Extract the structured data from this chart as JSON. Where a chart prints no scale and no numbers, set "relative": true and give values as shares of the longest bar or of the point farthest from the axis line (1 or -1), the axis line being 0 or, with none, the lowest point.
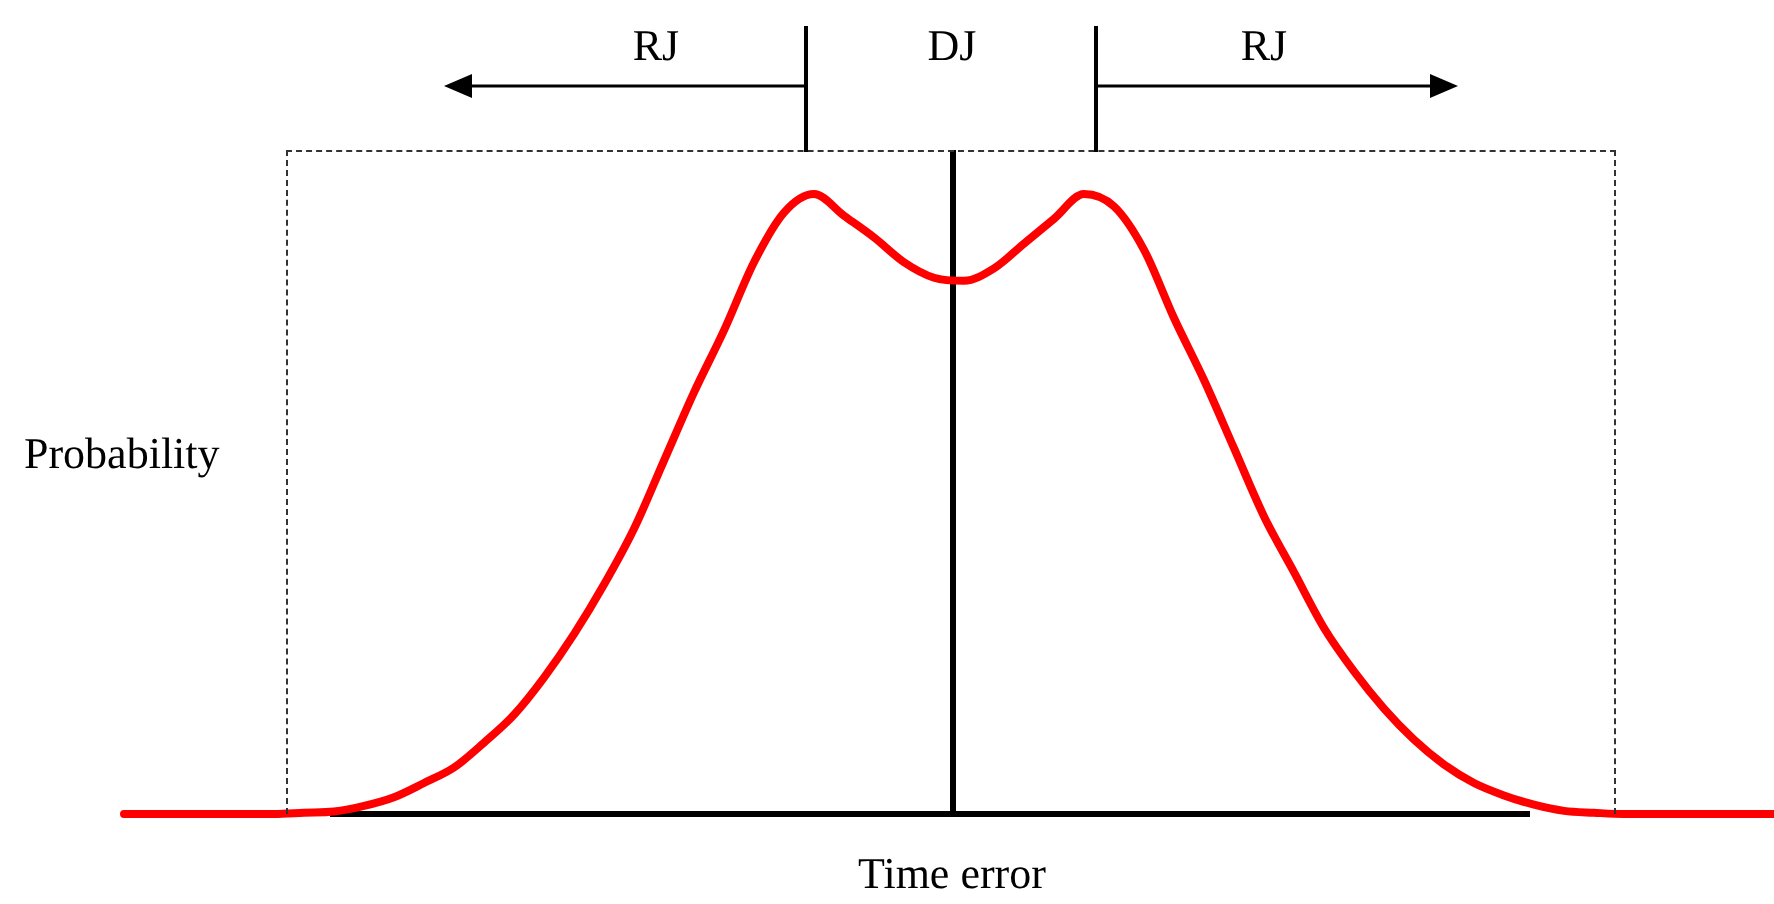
{
  "chart_data": {
    "type": "line",
    "relative": true,
    "xlabel": "Time error",
    "ylabel": "Probability",
    "annotations": [
      "RJ",
      "DJ",
      "RJ"
    ],
    "marker": "none",
    "line_style": "solid",
    "categories": [
      null,
      null,
      null,
      null,
      null,
      null,
      null,
      null,
      null,
      null,
      null,
      null,
      null,
      null,
      null,
      null,
      null,
      null,
      null,
      null,
      null,
      null,
      null,
      null,
      null,
      null,
      null,
      null,
      null,
      null,
      null,
      null,
      null,
      null,
      null,
      null,
      null,
      null,
      null,
      null,
      null,
      null,
      null,
      null,
      null,
      null,
      null,
      null,
      null,
      null,
      null,
      null,
      null,
      null,
      null,
      null
    ],
    "series": [
      {
        "color": "#ff0000",
        "values": [
          0,
          0,
          0,
          0,
          0,
          0,
          0.002,
          0.004,
          0.013,
          0.027,
          0.05,
          0.075,
          0.115,
          0.16,
          0.22,
          0.29,
          0.37,
          0.46,
          0.57,
          0.68,
          0.78,
          0.89,
          0.97,
          1,
          0.965,
          0.93,
          0.89,
          0.865,
          0.86,
          0.88,
          0.92,
          0.96,
          1,
          0.98,
          0.91,
          0.8,
          0.7,
          0.59,
          0.48,
          0.39,
          0.3,
          0.23,
          0.17,
          0.12,
          0.08,
          0.05,
          0.03,
          0.015,
          0.005,
          0.002,
          0,
          0,
          0,
          0,
          0,
          0
        ]
      }
    ]
  }
}
